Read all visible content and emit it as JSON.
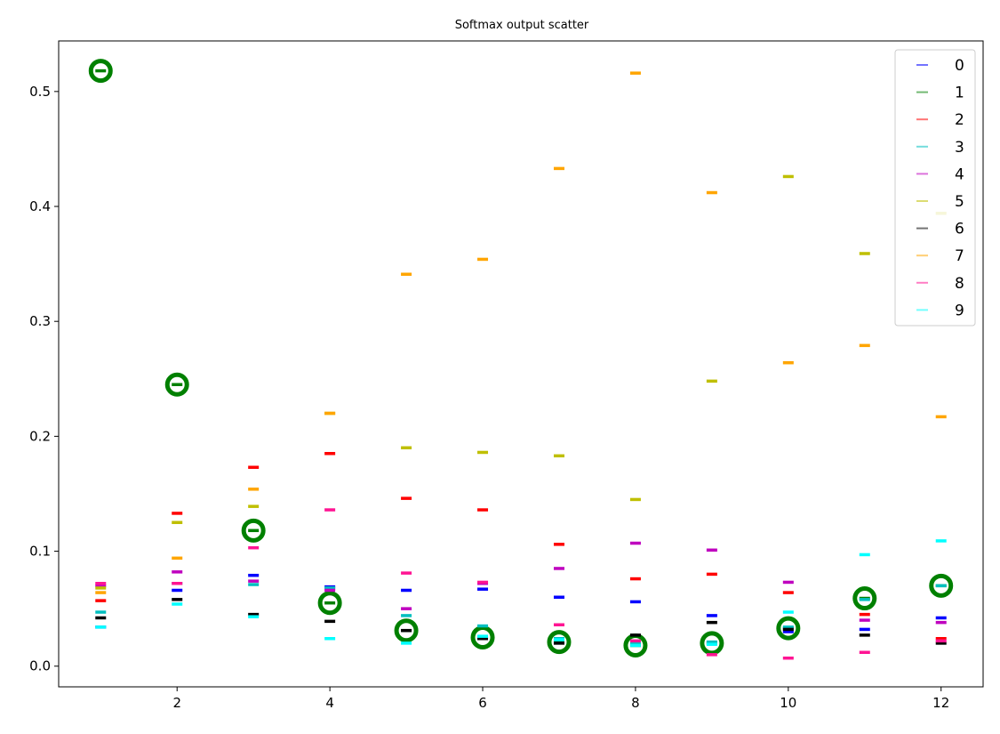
{
  "chart_data": {
    "type": "scatter",
    "title": "Softmax output scatter",
    "xlabel": "",
    "ylabel": "",
    "xlim": [
      0.45,
      12.55
    ],
    "ylim": [
      -0.018,
      0.544
    ],
    "xticks": [
      2,
      4,
      6,
      8,
      10,
      12
    ],
    "yticks": [
      0.0,
      0.1,
      0.2,
      0.3,
      0.4,
      0.5
    ],
    "ytick_labels": [
      "0.0",
      "0.1",
      "0.2",
      "0.3",
      "0.4",
      "0.5"
    ],
    "grid": false,
    "legend_position": "top-right",
    "x": [
      1,
      2,
      3,
      4,
      5,
      6,
      7,
      8,
      9,
      10,
      11,
      12
    ],
    "series": [
      {
        "name": "0",
        "color": "#0000ff",
        "values": [
          0.034,
          0.066,
          0.079,
          0.069,
          0.066,
          0.067,
          0.06,
          0.056,
          0.044,
          0.03,
          0.032,
          0.042
        ]
      },
      {
        "name": "1",
        "color": "#008000",
        "values": [
          0.518,
          0.245,
          0.118,
          0.055,
          0.031,
          0.025,
          0.021,
          0.018,
          0.02,
          0.033,
          0.059,
          0.07
        ]
      },
      {
        "name": "2",
        "color": "#ff0000",
        "values": [
          0.057,
          0.133,
          0.173,
          0.185,
          0.146,
          0.136,
          0.106,
          0.076,
          0.08,
          0.064,
          0.045,
          0.024
        ]
      },
      {
        "name": "3",
        "color": "#00bfbf",
        "values": [
          0.047,
          0.072,
          0.071,
          0.068,
          0.044,
          0.035,
          0.024,
          0.02,
          0.021,
          0.034,
          0.058,
          0.07
        ]
      },
      {
        "name": "4",
        "color": "#bf00bf",
        "values": [
          0.07,
          0.082,
          0.074,
          0.066,
          0.05,
          0.072,
          0.085,
          0.107,
          0.101,
          0.073,
          0.04,
          0.038
        ]
      },
      {
        "name": "5",
        "color": "#bfbf00",
        "values": [
          0.068,
          0.125,
          0.139,
          0.22,
          0.19,
          0.186,
          0.183,
          0.145,
          0.248,
          0.426,
          0.359,
          0.394
        ]
      },
      {
        "name": "6",
        "color": "#000000",
        "values": [
          0.042,
          0.058,
          0.045,
          0.039,
          0.031,
          0.024,
          0.02,
          0.027,
          0.038,
          0.032,
          0.027,
          0.02
        ]
      },
      {
        "name": "7",
        "color": "#ffa500",
        "values": [
          0.064,
          0.094,
          0.154,
          0.22,
          0.341,
          0.354,
          0.433,
          0.516,
          0.412,
          0.264,
          0.279,
          0.217
        ]
      },
      {
        "name": "8",
        "color": "#ff1493",
        "values": [
          0.072,
          0.072,
          0.103,
          0.136,
          0.081,
          0.073,
          0.036,
          0.022,
          0.01,
          0.007,
          0.012,
          0.022
        ]
      },
      {
        "name": "9",
        "color": "#00ffff",
        "values": [
          0.034,
          0.054,
          0.043,
          0.024,
          0.02,
          0.026,
          0.023,
          0.018,
          0.019,
          0.047,
          0.097,
          0.109
        ]
      }
    ],
    "highlight": {
      "series": "1",
      "marker": "circle",
      "color": "#008000",
      "values": [
        0.518,
        0.245,
        0.118,
        0.055,
        0.031,
        0.025,
        0.021,
        0.018,
        0.02,
        0.033,
        0.059,
        0.07
      ]
    }
  }
}
